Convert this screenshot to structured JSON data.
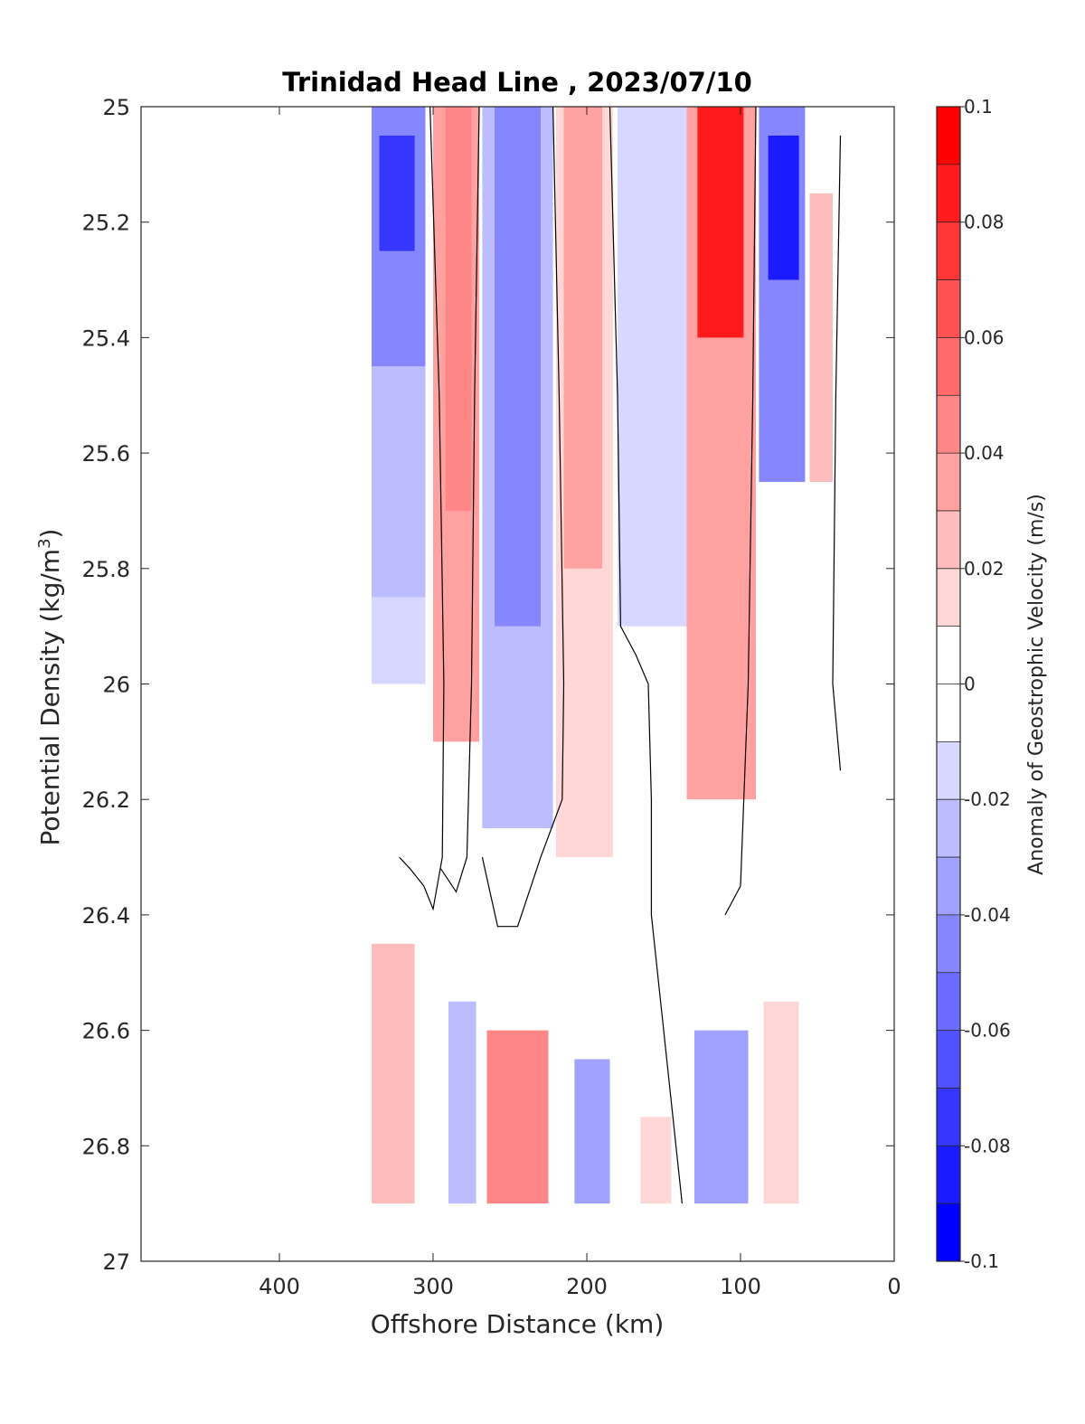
{
  "chart_data": {
    "type": "heatmap",
    "subtype": "filled-contour",
    "title": "Trinidad Head Line , 2023/07/10",
    "xlabel": "Offshore Distance (km)",
    "ylabel_main": "Potential Density (kg/m",
    "ylabel_sup": "3",
    "ylabel_close": ")",
    "colorbar_label": "Anomaly of Geostrophic Velocity (m/s)",
    "xlim": [
      490,
      0
    ],
    "x_reversed": true,
    "ylim": [
      25,
      27
    ],
    "y_reversed": true,
    "xticks": [
      400,
      300,
      200,
      100,
      0
    ],
    "xtick_labels": [
      "400",
      "300",
      "200",
      "100",
      "0"
    ],
    "yticks": [
      25,
      25.2,
      25.4,
      25.6,
      25.8,
      26,
      26.2,
      26.4,
      26.6,
      26.8,
      27
    ],
    "ytick_labels": [
      "25",
      "25.2",
      "25.4",
      "25.6",
      "25.8",
      "26",
      "26.2",
      "26.4",
      "26.6",
      "26.8",
      "27"
    ],
    "colorbar_range": [
      -0.1,
      0.1
    ],
    "colorbar_levels": [
      -0.1,
      -0.09,
      -0.08,
      -0.07,
      -0.06,
      -0.05,
      -0.04,
      -0.03,
      -0.02,
      -0.01,
      0,
      0.01,
      0.02,
      0.03,
      0.04,
      0.05,
      0.06,
      0.07,
      0.08,
      0.09,
      0.1
    ],
    "colorbar_ticks": [
      0.1,
      0.08,
      0.06,
      0.04,
      0.02,
      0,
      -0.02,
      -0.04,
      -0.06,
      -0.08,
      -0.1
    ],
    "colorbar_tick_labels": [
      "0.1",
      "0.08",
      "0.06",
      "0.04",
      "0.02",
      "0",
      "-0.02",
      "-0.04",
      "-0.06",
      "-0.08",
      "-0.1"
    ],
    "colormap": "blue-white-red",
    "colors": {
      "negative_max": "#0000ff",
      "zero": "#ffffff",
      "positive_max": "#ff0000",
      "contour_line": "#000000"
    },
    "data_extent": {
      "x": [
        30,
        340
      ],
      "y": [
        25,
        26.9
      ]
    },
    "cells": [
      {
        "x0": 340,
        "x1": 305,
        "y0": 25.0,
        "y1": 25.45,
        "v": -0.05
      },
      {
        "x0": 340,
        "x1": 305,
        "y0": 25.45,
        "y1": 25.85,
        "v": -0.025
      },
      {
        "x0": 340,
        "x1": 305,
        "y0": 25.85,
        "y1": 26.0,
        "v": -0.012
      },
      {
        "x0": 335,
        "x1": 312,
        "y0": 25.05,
        "y1": 25.25,
        "v": -0.075
      },
      {
        "x0": 300,
        "x1": 270,
        "y0": 25.0,
        "y1": 26.1,
        "v": 0.03
      },
      {
        "x0": 292,
        "x1": 275,
        "y0": 25.0,
        "y1": 25.7,
        "v": 0.045
      },
      {
        "x0": 268,
        "x1": 222,
        "y0": 25.0,
        "y1": 26.25,
        "v": -0.025
      },
      {
        "x0": 260,
        "x1": 230,
        "y0": 25.0,
        "y1": 25.9,
        "v": -0.045
      },
      {
        "x0": 220,
        "x1": 183,
        "y0": 25.0,
        "y1": 26.3,
        "v": 0.015
      },
      {
        "x0": 215,
        "x1": 190,
        "y0": 25.0,
        "y1": 25.8,
        "v": 0.035
      },
      {
        "x0": 180,
        "x1": 135,
        "y0": 25.0,
        "y1": 25.9,
        "v": -0.02
      },
      {
        "x0": 135,
        "x1": 90,
        "y0": 25.0,
        "y1": 26.2,
        "v": 0.035
      },
      {
        "x0": 128,
        "x1": 98,
        "y0": 25.0,
        "y1": 25.4,
        "v": 0.085
      },
      {
        "x0": 88,
        "x1": 58,
        "y0": 25.0,
        "y1": 25.65,
        "v": -0.045
      },
      {
        "x0": 82,
        "x1": 62,
        "y0": 25.05,
        "y1": 25.3,
        "v": -0.085
      },
      {
        "x0": 55,
        "x1": 40,
        "y0": 25.15,
        "y1": 25.65,
        "v": 0.02
      },
      {
        "x0": 340,
        "x1": 312,
        "y0": 26.45,
        "y1": 26.9,
        "v": 0.025
      },
      {
        "x0": 290,
        "x1": 272,
        "y0": 26.55,
        "y1": 26.9,
        "v": -0.03
      },
      {
        "x0": 265,
        "x1": 225,
        "y0": 26.6,
        "y1": 26.9,
        "v": 0.04
      },
      {
        "x0": 208,
        "x1": 185,
        "y0": 26.65,
        "y1": 26.9,
        "v": -0.035
      },
      {
        "x0": 165,
        "x1": 145,
        "y0": 26.75,
        "y1": 26.9,
        "v": 0.015
      },
      {
        "x0": 130,
        "x1": 95,
        "y0": 26.6,
        "y1": 26.9,
        "v": -0.035
      },
      {
        "x0": 85,
        "x1": 62,
        "y0": 26.55,
        "y1": 26.9,
        "v": 0.015
      }
    ],
    "zero_contours": [
      [
        [
          302,
          25.0
        ],
        [
          296,
          25.5
        ],
        [
          293,
          26.0
        ],
        [
          294,
          26.3
        ],
        [
          300,
          26.39
        ],
        [
          306,
          26.35
        ],
        [
          315,
          26.32
        ],
        [
          322,
          26.3
        ]
      ],
      [
        [
          270,
          25.0
        ],
        [
          273,
          25.5
        ],
        [
          275,
          26.0
        ],
        [
          278,
          26.3
        ],
        [
          285,
          26.36
        ],
        [
          295,
          26.32
        ]
      ],
      [
        [
          222,
          25.0
        ],
        [
          218,
          25.5
        ],
        [
          215,
          26.0
        ],
        [
          216,
          26.2
        ],
        [
          230,
          26.3
        ],
        [
          245,
          26.42
        ],
        [
          258,
          26.42
        ],
        [
          268,
          26.3
        ]
      ],
      [
        [
          185,
          25.0
        ],
        [
          180,
          25.5
        ],
        [
          178,
          25.9
        ],
        [
          168,
          25.95
        ],
        [
          160,
          26.0
        ],
        [
          158,
          26.2
        ],
        [
          158,
          26.4
        ],
        [
          150,
          26.6
        ],
        [
          138,
          26.9
        ]
      ],
      [
        [
          90,
          25.0
        ],
        [
          92,
          25.5
        ],
        [
          95,
          26.0
        ],
        [
          100,
          26.35
        ],
        [
          110,
          26.4
        ]
      ],
      [
        [
          35,
          25.05
        ],
        [
          38,
          25.5
        ],
        [
          40,
          26.0
        ],
        [
          35,
          26.15
        ]
      ]
    ]
  }
}
